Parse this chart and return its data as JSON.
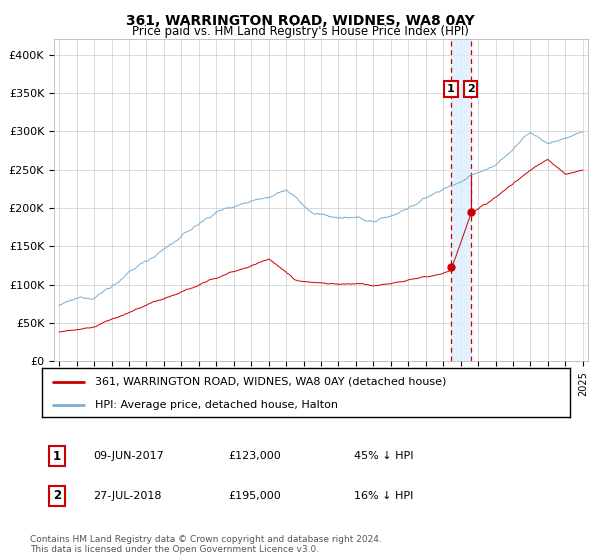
{
  "title": "361, WARRINGTON ROAD, WIDNES, WA8 0AY",
  "subtitle": "Price paid vs. HM Land Registry's House Price Index (HPI)",
  "legend_label_red": "361, WARRINGTON ROAD, WIDNES, WA8 0AY (detached house)",
  "legend_label_blue": "HPI: Average price, detached house, Halton",
  "marker1_date": "09-JUN-2017",
  "marker1_price": 123000,
  "marker1_hpi_pct": "45% ↓ HPI",
  "marker2_date": "27-JUL-2018",
  "marker2_price": 195000,
  "marker2_hpi_pct": "16% ↓ HPI",
  "footnote": "Contains HM Land Registry data © Crown copyright and database right 2024.\nThis data is licensed under the Open Government Licence v3.0.",
  "ylim": [
    0,
    420000
  ],
  "yticks": [
    0,
    50000,
    100000,
    150000,
    200000,
    250000,
    300000,
    350000,
    400000
  ],
  "color_red": "#cc0000",
  "color_blue": "#7aafd4",
  "color_highlight": "#ddeeff",
  "color_dashed": "#cc0000",
  "start_year": 1995,
  "end_year": 2025
}
